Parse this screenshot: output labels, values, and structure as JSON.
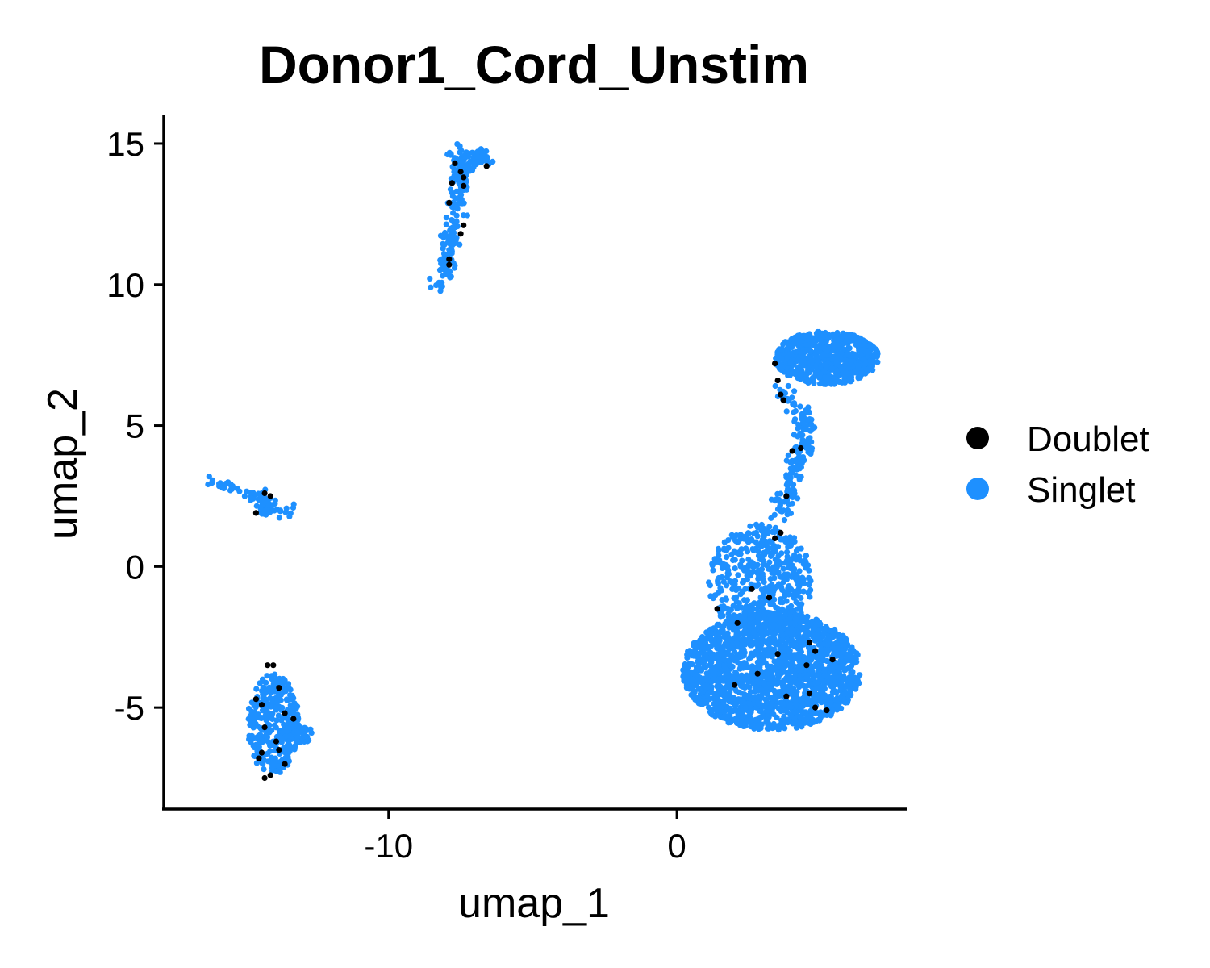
{
  "chart_data": {
    "type": "scatter",
    "title": "Donor1_Cord_Unstim",
    "xlabel": "umap_1",
    "ylabel": "umap_2",
    "xlim": [
      -17.8,
      8.0
    ],
    "ylim": [
      -8.6,
      16.0
    ],
    "x_ticks": [
      -10,
      0
    ],
    "x_tick_labels": [
      "-10",
      "0"
    ],
    "y_ticks": [
      15,
      10,
      5,
      0,
      -5
    ],
    "y_tick_labels": [
      "15",
      "10",
      "5",
      "0",
      "-5"
    ],
    "grid": false,
    "legend_position": "right",
    "series": [
      {
        "name": "Singlet",
        "color": "#1E90FF",
        "clusters": [
          {
            "shape": "ellipse",
            "cx": 3.3,
            "cy": -3.7,
            "rx": 3.1,
            "ry": 2.1,
            "n": 1900
          },
          {
            "shape": "ellipse",
            "cx": 2.9,
            "cy": -0.5,
            "rx": 1.8,
            "ry": 2.0,
            "n": 500
          },
          {
            "shape": "ellipse",
            "cx": 5.2,
            "cy": 7.4,
            "rx": 1.8,
            "ry": 0.95,
            "n": 650
          },
          {
            "shape": "path",
            "points": [
              [
                3.5,
                6.3
              ],
              [
                4.5,
                5.3
              ],
              [
                4.4,
                4.3
              ],
              [
                4.1,
                3.5
              ],
              [
                3.9,
                2.6
              ],
              [
                3.5,
                1.8
              ]
            ],
            "width": 0.35,
            "n": 170
          },
          {
            "shape": "path",
            "points": [
              [
                -8.2,
                9.9
              ],
              [
                -7.9,
                11.0
              ],
              [
                -7.7,
                12.5
              ],
              [
                -7.5,
                13.6
              ],
              [
                -7.6,
                14.2
              ],
              [
                -6.6,
                14.5
              ],
              [
                -7.7,
                14.6
              ]
            ],
            "width": 0.32,
            "n": 260
          },
          {
            "shape": "path",
            "points": [
              [
                -16.3,
                3.0
              ],
              [
                -15.5,
                2.8
              ],
              [
                -14.6,
                2.5
              ],
              [
                -14.1,
                2.2
              ],
              [
                -14.4,
                1.9
              ],
              [
                -13.3,
                2.0
              ]
            ],
            "width": 0.22,
            "n": 90
          },
          {
            "shape": "ellipse",
            "cx": -14.0,
            "cy": -5.6,
            "rx": 0.9,
            "ry": 1.8,
            "n": 340
          },
          {
            "shape": "ellipse",
            "cx": -13.2,
            "cy": -6.0,
            "rx": 0.6,
            "ry": 0.4,
            "n": 60
          }
        ]
      },
      {
        "name": "Doublet",
        "color": "#000000",
        "points": [
          [
            -7.7,
            14.3
          ],
          [
            -7.5,
            14.0
          ],
          [
            -7.4,
            13.8
          ],
          [
            -7.8,
            13.6
          ],
          [
            -6.6,
            14.2
          ],
          [
            -7.4,
            13.5
          ],
          [
            -7.9,
            12.9
          ],
          [
            -7.4,
            12.1
          ],
          [
            -7.5,
            11.8
          ],
          [
            -7.9,
            10.9
          ],
          [
            -7.9,
            10.7
          ],
          [
            3.4,
            7.2
          ],
          [
            3.5,
            6.6
          ],
          [
            3.6,
            6.1
          ],
          [
            3.7,
            5.9
          ],
          [
            4.0,
            4.1
          ],
          [
            4.3,
            4.2
          ],
          [
            3.8,
            2.5
          ],
          [
            3.6,
            1.2
          ],
          [
            3.4,
            1.0
          ],
          [
            3.2,
            -1.1
          ],
          [
            2.6,
            -0.8
          ],
          [
            2.1,
            -2.0
          ],
          [
            1.4,
            -1.5
          ],
          [
            4.6,
            -2.7
          ],
          [
            4.5,
            -3.5
          ],
          [
            4.8,
            -3.0
          ],
          [
            5.4,
            -3.3
          ],
          [
            4.6,
            -4.5
          ],
          [
            3.8,
            -4.6
          ],
          [
            2.8,
            -3.8
          ],
          [
            2.0,
            -4.2
          ],
          [
            4.8,
            -5.0
          ],
          [
            5.2,
            -5.1
          ],
          [
            3.5,
            -3.1
          ],
          [
            -14.6,
            1.9
          ],
          [
            -14.3,
            2.6
          ],
          [
            -14.1,
            2.5
          ],
          [
            -14.2,
            -3.5
          ],
          [
            -14.0,
            -3.5
          ],
          [
            -13.8,
            -4.3
          ],
          [
            -14.6,
            -4.7
          ],
          [
            -14.4,
            -4.9
          ],
          [
            -13.6,
            -5.2
          ],
          [
            -14.3,
            -5.7
          ],
          [
            -13.9,
            -6.2
          ],
          [
            -14.4,
            -6.6
          ],
          [
            -13.8,
            -6.5
          ],
          [
            -14.5,
            -6.8
          ],
          [
            -14.1,
            -7.4
          ],
          [
            -14.3,
            -7.5
          ],
          [
            -13.6,
            -7.0
          ],
          [
            -13.3,
            -5.4
          ]
        ]
      }
    ]
  }
}
